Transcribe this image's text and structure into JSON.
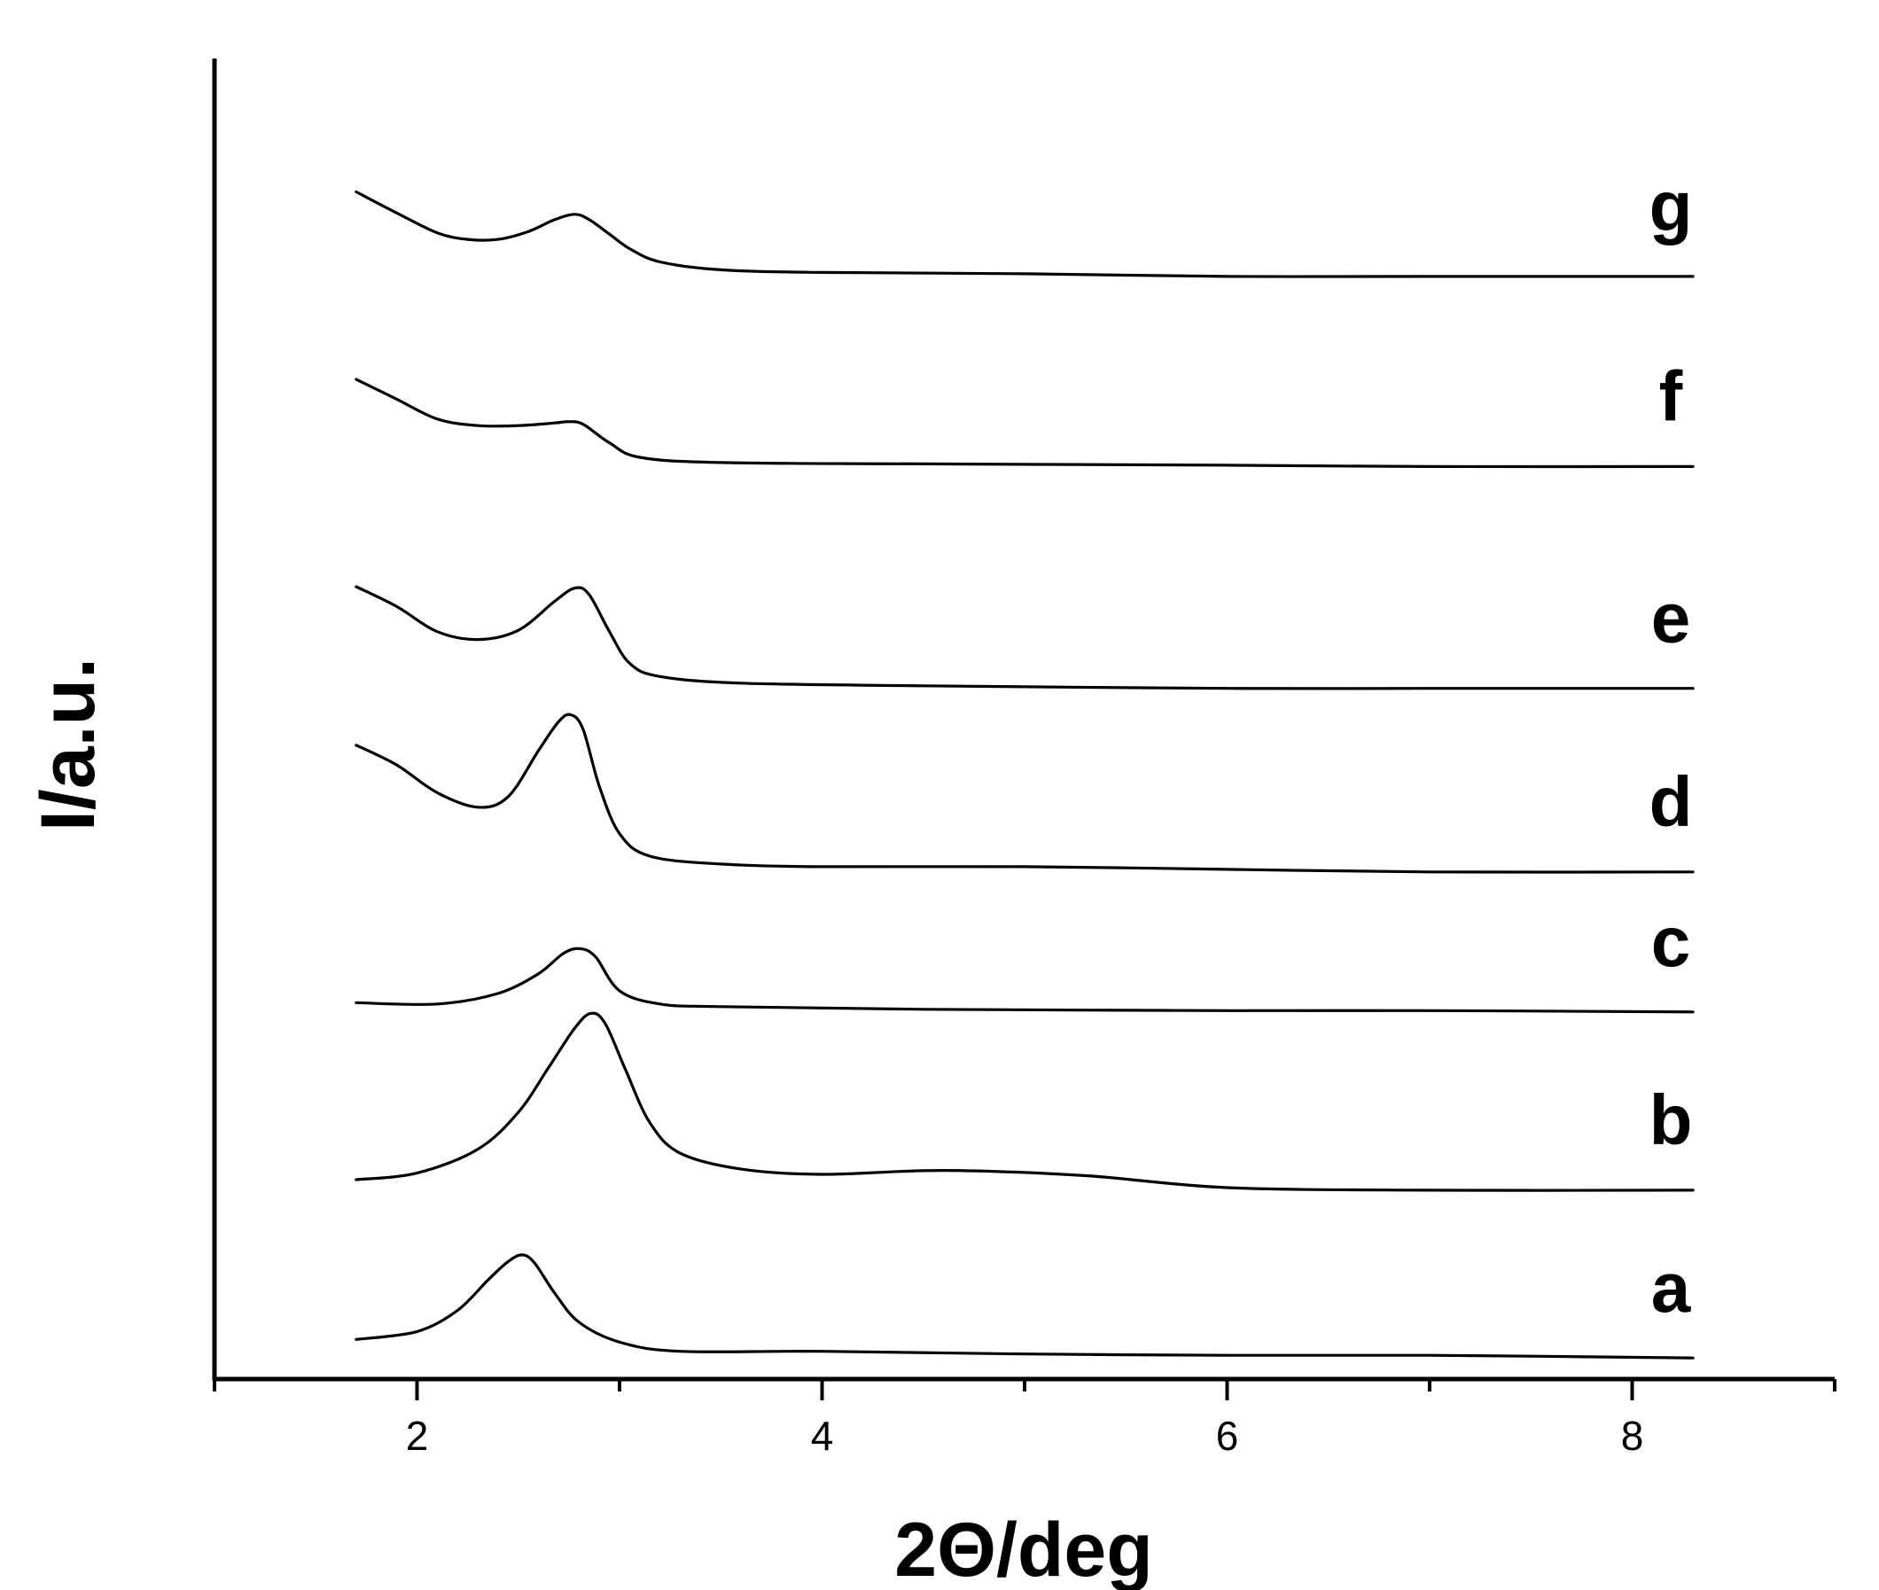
{
  "chart_data": {
    "type": "line",
    "xlabel": "2Θ/deg",
    "ylabel": "I/a.u.",
    "xlim": [
      1,
      9
    ],
    "xticks": [
      2,
      4,
      6,
      8
    ],
    "minor_xticks": [
      1,
      3,
      5,
      7,
      9
    ],
    "ylim": [
      0,
      100
    ],
    "grid": false,
    "legend": "none",
    "series": [
      {
        "name": "a",
        "points": [
          [
            1.7,
            3.0
          ],
          [
            2.0,
            3.6
          ],
          [
            2.2,
            5.2
          ],
          [
            2.35,
            7.5
          ],
          [
            2.45,
            8.9
          ],
          [
            2.52,
            9.4
          ],
          [
            2.58,
            8.8
          ],
          [
            2.68,
            6.5
          ],
          [
            2.8,
            4.3
          ],
          [
            3.0,
            2.8
          ],
          [
            3.3,
            2.1
          ],
          [
            4.0,
            2.1
          ],
          [
            5.0,
            1.9
          ],
          [
            6.0,
            1.8
          ],
          [
            7.0,
            1.8
          ],
          [
            8.3,
            1.6
          ]
        ]
      },
      {
        "name": "b",
        "points": [
          [
            1.7,
            15.1
          ],
          [
            2.0,
            15.6
          ],
          [
            2.3,
            17.4
          ],
          [
            2.5,
            20.2
          ],
          [
            2.65,
            23.6
          ],
          [
            2.78,
            26.6
          ],
          [
            2.86,
            27.7
          ],
          [
            2.93,
            26.9
          ],
          [
            3.03,
            23.4
          ],
          [
            3.15,
            19.4
          ],
          [
            3.3,
            17.1
          ],
          [
            3.6,
            15.9
          ],
          [
            4.0,
            15.5
          ],
          [
            4.6,
            15.8
          ],
          [
            5.3,
            15.4
          ],
          [
            6.0,
            14.5
          ],
          [
            7.0,
            14.3
          ],
          [
            8.3,
            14.3
          ]
        ]
      },
      {
        "name": "c",
        "points": [
          [
            1.7,
            28.5
          ],
          [
            2.1,
            28.4
          ],
          [
            2.4,
            29.2
          ],
          [
            2.6,
            30.7
          ],
          [
            2.72,
            32.2
          ],
          [
            2.8,
            32.6
          ],
          [
            2.88,
            32.0
          ],
          [
            3.0,
            29.4
          ],
          [
            3.2,
            28.4
          ],
          [
            3.5,
            28.2
          ],
          [
            4.5,
            28.0
          ],
          [
            6.0,
            27.9
          ],
          [
            7.0,
            27.9
          ],
          [
            8.3,
            27.8
          ]
        ]
      },
      {
        "name": "d",
        "points": [
          [
            1.7,
            48.0
          ],
          [
            1.9,
            46.5
          ],
          [
            2.1,
            44.4
          ],
          [
            2.3,
            43.3
          ],
          [
            2.45,
            44.1
          ],
          [
            2.6,
            47.6
          ],
          [
            2.7,
            49.8
          ],
          [
            2.76,
            50.3
          ],
          [
            2.82,
            49.2
          ],
          [
            2.9,
            44.9
          ],
          [
            3.0,
            41.3
          ],
          [
            3.15,
            39.6
          ],
          [
            3.5,
            39.0
          ],
          [
            4.0,
            38.8
          ],
          [
            5.0,
            38.8
          ],
          [
            6.0,
            38.6
          ],
          [
            7.0,
            38.4
          ],
          [
            8.3,
            38.4
          ]
        ]
      },
      {
        "name": "e",
        "points": [
          [
            1.7,
            60.0
          ],
          [
            1.9,
            58.5
          ],
          [
            2.1,
            56.6
          ],
          [
            2.3,
            56.0
          ],
          [
            2.5,
            56.7
          ],
          [
            2.68,
            58.9
          ],
          [
            2.78,
            59.9
          ],
          [
            2.85,
            59.4
          ],
          [
            2.95,
            56.6
          ],
          [
            3.05,
            54.2
          ],
          [
            3.2,
            53.2
          ],
          [
            3.6,
            52.7
          ],
          [
            4.5,
            52.5
          ],
          [
            6.0,
            52.3
          ],
          [
            7.0,
            52.3
          ],
          [
            8.3,
            52.3
          ]
        ]
      },
      {
        "name": "f",
        "points": [
          [
            1.7,
            75.7
          ],
          [
            1.9,
            74.2
          ],
          [
            2.1,
            72.7
          ],
          [
            2.3,
            72.2
          ],
          [
            2.5,
            72.2
          ],
          [
            2.68,
            72.4
          ],
          [
            2.75,
            72.5
          ],
          [
            2.82,
            72.3
          ],
          [
            2.95,
            70.9
          ],
          [
            3.1,
            69.8
          ],
          [
            3.5,
            69.4
          ],
          [
            4.5,
            69.3
          ],
          [
            6.0,
            69.2
          ],
          [
            7.0,
            69.1
          ],
          [
            8.3,
            69.1
          ]
        ]
      },
      {
        "name": "g",
        "points": [
          [
            1.7,
            89.9
          ],
          [
            1.9,
            88.3
          ],
          [
            2.1,
            86.8
          ],
          [
            2.25,
            86.3
          ],
          [
            2.4,
            86.3
          ],
          [
            2.55,
            86.9
          ],
          [
            2.68,
            87.8
          ],
          [
            2.78,
            88.2
          ],
          [
            2.85,
            87.8
          ],
          [
            2.95,
            86.7
          ],
          [
            3.05,
            85.6
          ],
          [
            3.2,
            84.6
          ],
          [
            3.5,
            84.0
          ],
          [
            4.0,
            83.8
          ],
          [
            5.0,
            83.7
          ],
          [
            6.0,
            83.5
          ],
          [
            7.0,
            83.5
          ],
          [
            8.3,
            83.5
          ]
        ]
      }
    ]
  }
}
